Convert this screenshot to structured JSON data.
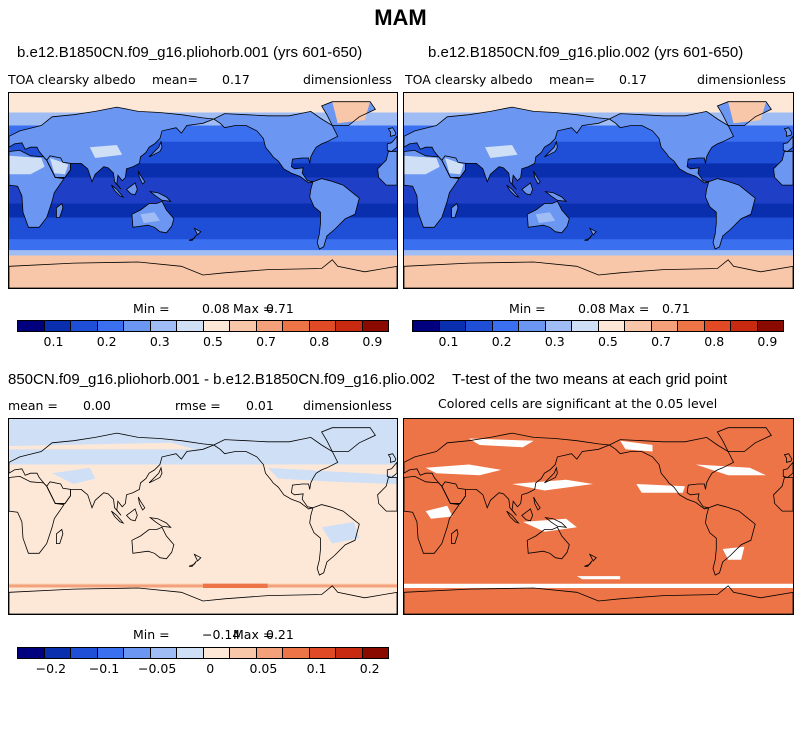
{
  "figure_title": "MAM",
  "palette_abs": [
    "#00007f",
    "#0a2fae",
    "#1f4fd6",
    "#3a6fef",
    "#6b96f2",
    "#9fbcf4",
    "#cfe0f6",
    "#fde8d8",
    "#f8c6a8",
    "#f4a07a",
    "#ec7446",
    "#e04b25",
    "#c72a10",
    "#8a0a00"
  ],
  "panels": [
    {
      "title": "b.e12.B1850CN.f09_g16.pliohorb.001 (yrs 601-650)",
      "left_label": "TOA clearsky albedo",
      "mean_label": "mean=",
      "mean_value": "0.17",
      "units": "dimensionless",
      "min_label": "Min =",
      "min_value": "0.08",
      "max_label": "Max =",
      "max_value": "0.71",
      "colorbar_ticks": [
        "0.1",
        "0.2",
        "0.3",
        "0.5",
        "0.7",
        "0.8",
        "0.9"
      ]
    },
    {
      "title": "b.e12.B1850CN.f09_g16.plio.002 (yrs 601-650)",
      "left_label": "TOA clearsky albedo",
      "mean_label": "mean=",
      "mean_value": "0.17",
      "units": "dimensionless",
      "min_label": "Min =",
      "min_value": "0.08",
      "max_label": "Max =",
      "max_value": "0.71",
      "colorbar_ticks": [
        "0.1",
        "0.2",
        "0.3",
        "0.5",
        "0.7",
        "0.8",
        "0.9"
      ]
    },
    {
      "title": "850CN.f09_g16.pliohorb.001 - b.e12.B1850CN.f09_g16.plio.002",
      "left_label": "mean =",
      "mean_value": "0.00",
      "rmse_label": "rmse =",
      "rmse_value": "0.01",
      "units": "dimensionless",
      "min_label": "Min =",
      "min_value": "−0.14",
      "max_label": "Max =",
      "max_value": "0.21",
      "colorbar_ticks": [
        "−0.2",
        "−0.1",
        "−0.05",
        "0",
        "0.05",
        "0.1",
        "0.2"
      ]
    },
    {
      "title": "T-test of the two means at each grid point",
      "subtitle": "Colored cells are significant at the 0.05 level",
      "significance_color": "#ec7446"
    }
  ]
}
